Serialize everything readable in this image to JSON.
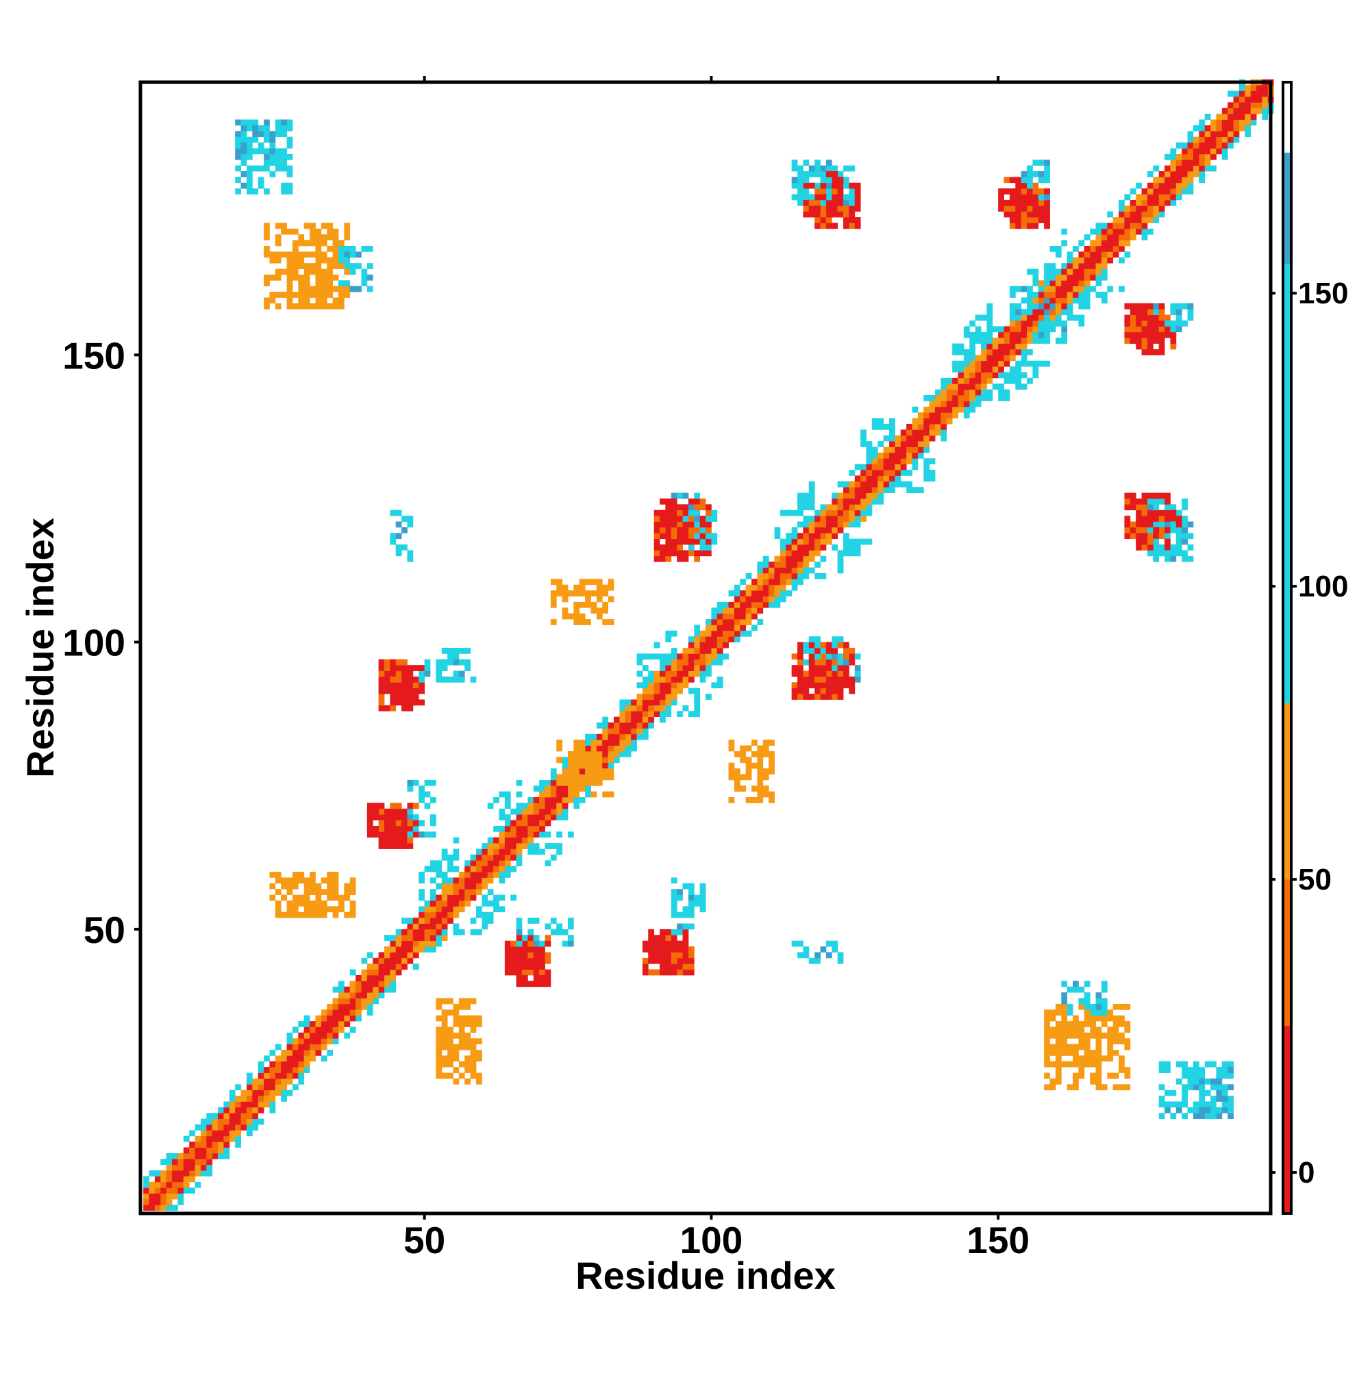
{
  "chart_data": {
    "type": "heatmap",
    "title": "",
    "xlabel": "Residue index",
    "ylabel": "Residue index",
    "xlim": [
      1,
      197
    ],
    "ylim": [
      1,
      197
    ],
    "x_ticks": [
      50,
      100,
      150
    ],
    "y_ticks": [
      50,
      100,
      150
    ],
    "grid": false,
    "legend": "colorbar-right",
    "colorbar": {
      "range": [
        -7,
        186
      ],
      "ticks": [
        0,
        50,
        100,
        150
      ],
      "segments": [
        {
          "from": -7,
          "to": 25,
          "color": "#e41a1c"
        },
        {
          "from": 25,
          "to": 50,
          "color": "#f46d09"
        },
        {
          "from": 50,
          "to": 80,
          "color": "#f79a14"
        },
        {
          "from": 80,
          "to": 155,
          "color": "#22d3e3"
        },
        {
          "from": 155,
          "to": 174,
          "color": "#3b9fcc"
        },
        {
          "from": 174,
          "to": 186,
          "color": "#ffffff"
        }
      ]
    },
    "diagonal_band": {
      "i_from": 1,
      "i_to": 197,
      "half_width": 5
    },
    "diagonal_breaks": [
      52,
      64,
      90,
      114,
      128,
      145,
      158
    ],
    "blocks": [
      {
        "i": [
          17,
          26
        ],
        "j": [
          178,
          190
        ],
        "value": 100
      },
      {
        "i": [
          22,
          36
        ],
        "j": [
          158,
          172
        ],
        "value": 60
      },
      {
        "i": [
          42,
          47
        ],
        "j": [
          88,
          96
        ],
        "value": 10
      },
      {
        "i": [
          42,
          47
        ],
        "j": [
          64,
          70
        ],
        "value": 10
      },
      {
        "i": [
          25,
          37
        ],
        "j": [
          52,
          58
        ],
        "value": 60
      },
      {
        "i": [
          52,
          59
        ],
        "j": [
          23,
          34
        ],
        "value": 60
      },
      {
        "i": [
          53,
          58
        ],
        "j": [
          93,
          98
        ],
        "value": 100
      },
      {
        "i": [
          66,
          71
        ],
        "j": [
          40,
          48
        ],
        "value": 10
      },
      {
        "i": [
          66,
          75
        ],
        "j": [
          47,
          51
        ],
        "value": 100
      },
      {
        "i": [
          89,
          95
        ],
        "j": [
          42,
          49
        ],
        "value": 10
      },
      {
        "i": [
          93,
          96
        ],
        "j": [
          49,
          54
        ],
        "value": 100
      },
      {
        "i": [
          90,
          97
        ],
        "j": [
          114,
          122
        ],
        "value": 10
      },
      {
        "i": [
          91,
          97
        ],
        "j": [
          120,
          125
        ],
        "value": 100
      },
      {
        "i": [
          72,
          82
        ],
        "j": [
          103,
          110
        ],
        "value": 60
      },
      {
        "i": [
          73,
          80
        ],
        "j": [
          75,
          82
        ],
        "value": 60
      },
      {
        "i": [
          115,
          124
        ],
        "j": [
          91,
          99
        ],
        "value": 10
      },
      {
        "i": [
          116,
          123
        ],
        "j": [
          96,
          100
        ],
        "value": 100
      },
      {
        "i": [
          118,
          125
        ],
        "j": [
          172,
          179
        ],
        "value": 10
      },
      {
        "i": [
          118,
          124
        ],
        "j": [
          178,
          182
        ],
        "value": 100
      },
      {
        "i": [
          152,
          158
        ],
        "j": [
          172,
          178
        ],
        "value": 10
      },
      {
        "i": [
          154,
          158
        ],
        "j": [
          177,
          181
        ],
        "value": 100
      },
      {
        "i": [
          115,
          124
        ],
        "j": [
          176,
          181
        ],
        "value": 100
      },
      {
        "i": [
          174,
          181
        ],
        "j": [
          116,
          122
        ],
        "value": 10
      },
      {
        "i": [
          177,
          183
        ],
        "j": [
          114,
          120
        ],
        "value": 100
      },
      {
        "i": [
          174,
          180
        ],
        "j": [
          150,
          157
        ],
        "value": 10
      },
      {
        "i": [
          179,
          183
        ],
        "j": [
          154,
          158
        ],
        "value": 100
      },
      {
        "i": [
          158,
          167
        ],
        "j": [
          26,
          35
        ],
        "value": 60
      },
      {
        "i": [
          161,
          169
        ],
        "j": [
          35,
          40
        ],
        "value": 100
      },
      {
        "i": [
          180,
          190
        ],
        "j": [
          17,
          25
        ],
        "value": 100
      },
      {
        "i": [
          44,
          47
        ],
        "j": [
          114,
          122
        ],
        "value": 100
      },
      {
        "i": [
          156,
          161
        ],
        "j": [
          152,
          158
        ],
        "value": 100
      }
    ]
  }
}
